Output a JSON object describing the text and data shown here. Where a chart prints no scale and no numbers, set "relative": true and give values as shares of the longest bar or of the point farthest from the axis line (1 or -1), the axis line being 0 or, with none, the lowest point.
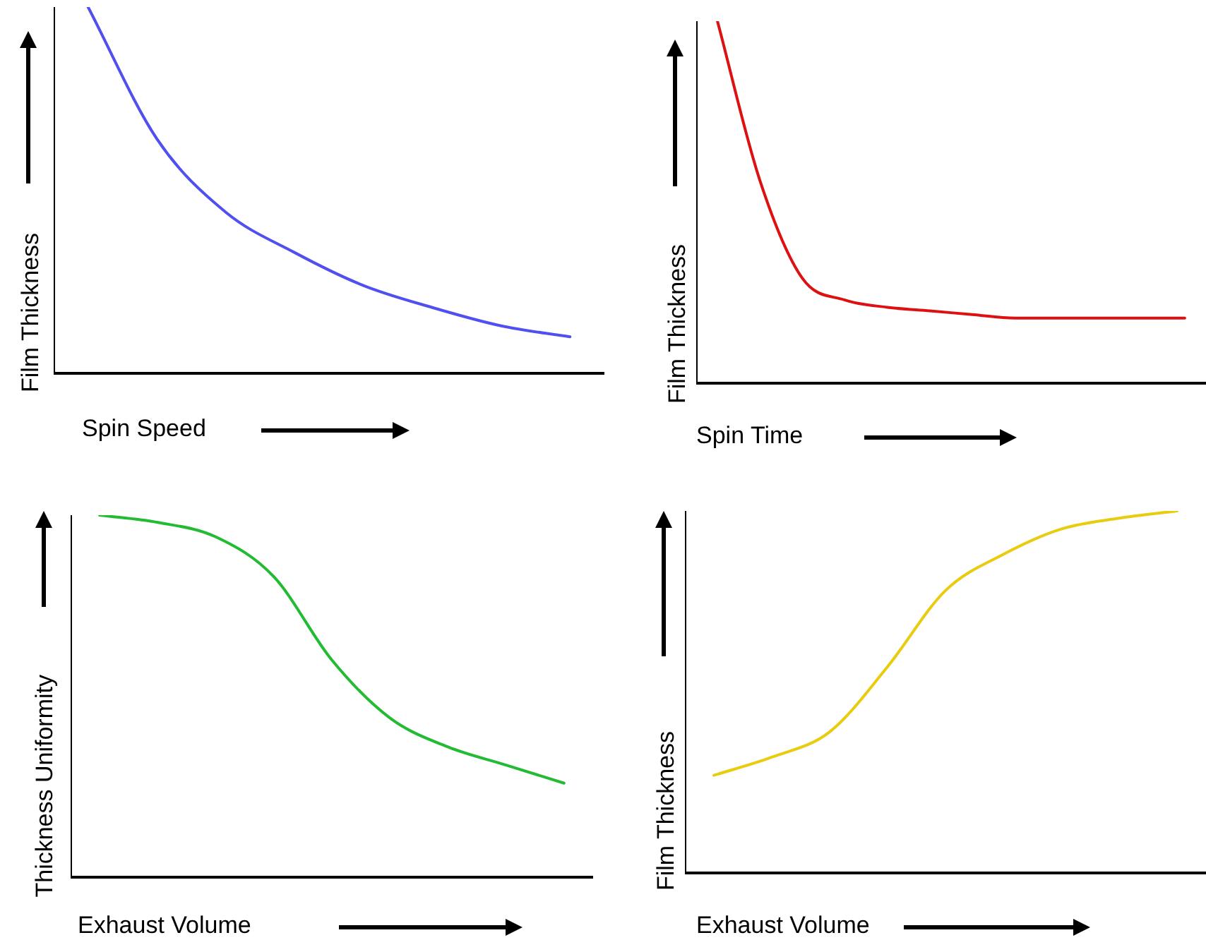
{
  "chart_data": [
    {
      "type": "line",
      "relative": true,
      "xlabel": "Spin Speed",
      "ylabel": "Film Thickness",
      "categories": [
        null,
        null,
        null,
        null,
        null,
        null,
        null,
        null
      ],
      "series": [
        {
          "color": "#5050f0",
          "values": [
            1,
            0.64,
            0.44,
            0.33,
            0.24,
            0.18,
            0.13,
            0.1
          ]
        }
      ],
      "grid": false,
      "legend": false,
      "marker": "none",
      "line_style": "solid"
    },
    {
      "type": "line",
      "relative": true,
      "xlabel": "Spin Time",
      "ylabel": "Film Thickness",
      "categories": [
        null,
        null,
        null,
        null,
        null,
        null,
        null,
        null,
        null,
        null,
        null,
        null
      ],
      "series": [
        {
          "color": "#dd1111",
          "values": [
            1,
            0.56,
            0.29,
            0.23,
            0.21,
            0.2,
            0.19,
            0.18,
            0.18,
            0.18,
            0.18,
            0.18
          ]
        }
      ],
      "grid": false,
      "legend": false,
      "marker": "none",
      "line_style": "solid"
    },
    {
      "type": "line",
      "relative": true,
      "xlabel": "Exhaust Volume",
      "ylabel": "Thickness Uniformity",
      "categories": [
        null,
        null,
        null,
        null,
        null,
        null,
        null,
        null,
        null
      ],
      "series": [
        {
          "color": "#22bb33",
          "values": [
            1,
            0.98,
            0.94,
            0.83,
            0.6,
            0.44,
            0.36,
            0.31,
            0.26
          ]
        }
      ],
      "grid": false,
      "legend": false,
      "marker": "none",
      "line_style": "solid"
    },
    {
      "type": "line",
      "relative": true,
      "xlabel": "Exhaust Volume",
      "ylabel": "Film Thickness",
      "categories": [
        null,
        null,
        null,
        null,
        null,
        null,
        null,
        null,
        null
      ],
      "series": [
        {
          "color": "#e8cc10",
          "values": [
            0.27,
            0.32,
            0.39,
            0.57,
            0.78,
            0.88,
            0.95,
            0.98,
            1
          ]
        }
      ],
      "grid": false,
      "legend": false,
      "marker": "none",
      "line_style": "solid"
    }
  ]
}
